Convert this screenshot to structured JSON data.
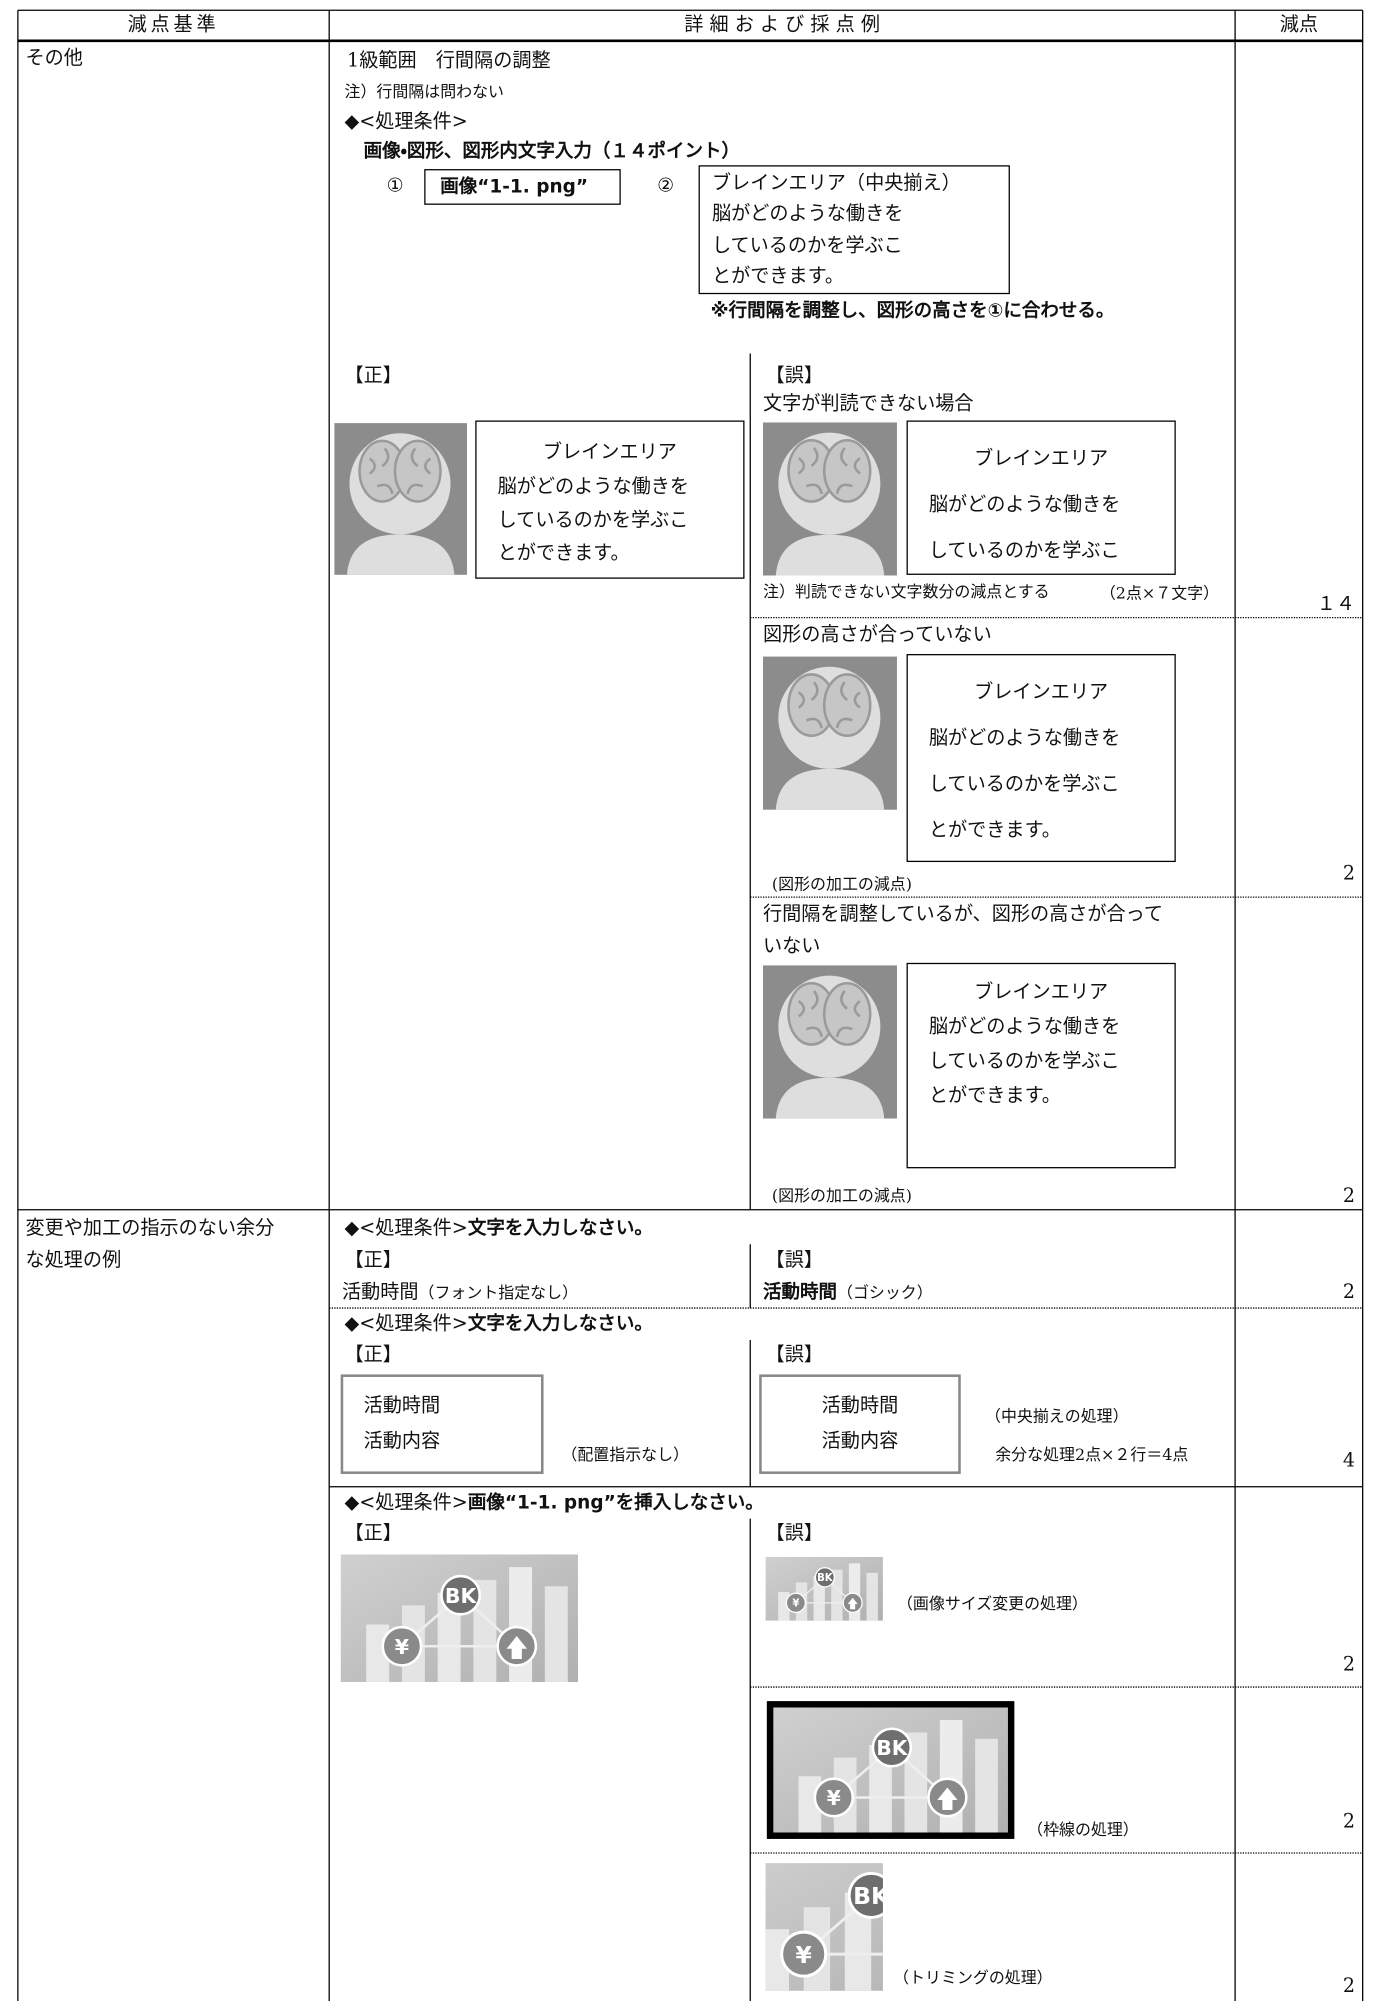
{
  "header": {
    "criteria": "減点基準",
    "detail": "詳 細 お よ び 採 点 例",
    "deduction": "減点"
  },
  "sections": [
    {
      "criterion": "その他",
      "intro": [
        "1級範囲　行間隔の調整",
        "注）行間隔は問わない",
        "◆<処理条件>",
        "画像・図形、図形内文字入力（１４ポイント）"
      ],
      "item1": {
        "number": "①",
        "label": "画像“1-1. png”"
      },
      "item2": {
        "number": "②",
        "title": "ブレインエリア（中央揃え）",
        "lines": [
          "脳がどのような働きを",
          "しているのかを学ぶこ",
          "とができます。"
        ]
      },
      "note": "※行間隔を調整し、図形の高さを①に合わせる。",
      "correct": {
        "label": "【正】",
        "box": [
          "ブレインエリア",
          "脳がどのような働きを",
          "しているのかを学ぶこ",
          "とができます。"
        ]
      },
      "wrong_label": "【誤】",
      "cases": [
        {
          "title": [
            "文字が判読できない場合"
          ],
          "box": [
            "ブレインエリア",
            "脳がどのような働きを",
            "しているのかを学ぶこ"
          ],
          "note": "注）判読できない文字数分の減点とする",
          "calc": "（2点×７文字）",
          "deduction": "１４"
        },
        {
          "title": [
            "図形の高さが合っていない"
          ],
          "box": [
            "ブレインエリア",
            "脳がどのような働きを",
            "しているのかを学ぶこ",
            "とができます。"
          ],
          "note": "(図形の加工の減点)",
          "deduction": "2"
        },
        {
          "title": [
            "行間隔を調整しているが、図形の高さが合って",
            "いない"
          ],
          "box": [
            "ブレインエリア",
            "脳がどのような働きを",
            "しているのかを学ぶこ",
            "とができます。"
          ],
          "note": "(図形の加工の減点)",
          "deduction": "2"
        }
      ]
    },
    {
      "criterion": [
        "変更や加工の指示のない余分",
        "な処理の例"
      ],
      "examples": [
        {
          "condition": "◆<処理条件>",
          "instruction": "文字を入力しなさい。",
          "correct_label": "【正】",
          "wrong_label": "【誤】",
          "correct": {
            "text": "活動時間",
            "note": "（フォント指定なし）"
          },
          "wrong": {
            "text": "活動時間",
            "note": "（ゴシック）"
          },
          "deduction": "2"
        },
        {
          "condition": "◆<処理条件>",
          "instruction": "文字を入力しなさい。",
          "correct_label": "【正】",
          "wrong_label": "【誤】",
          "correct": {
            "box": [
              "活動時間",
              "活動内容"
            ],
            "note": "（配置指示なし）"
          },
          "wrong": {
            "box": [
              "活動時間",
              "活動内容"
            ],
            "notes": [
              "（中央揃えの処理）",
              "余分な処理2点×２行＝4点"
            ]
          },
          "deduction": "4"
        },
        {
          "condition": "◆<処理条件>",
          "instruction": "画像“1-1. png”を挿入しなさい。",
          "correct_label": "【正】",
          "wrong_label": "【誤】",
          "cases": [
            {
              "note": "（画像サイズ変更の処理）",
              "deduction": "2"
            },
            {
              "note": "（枠線の処理）",
              "deduction": "2"
            },
            {
              "note": "（トリミングの処理）",
              "deduction": "2"
            }
          ]
        }
      ]
    }
  ]
}
